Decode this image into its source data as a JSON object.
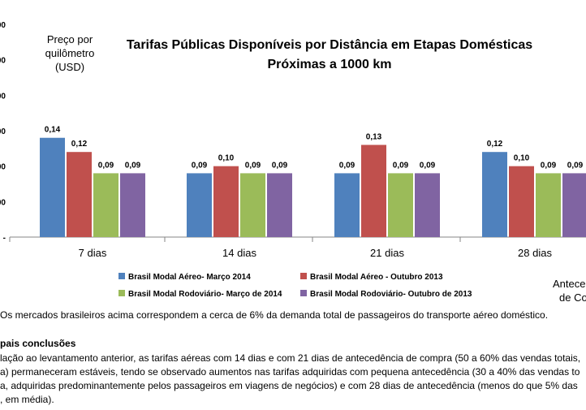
{
  "chart_data": {
    "type": "bar",
    "title_lines": [
      "Tarifas Públicas Disponíveis  por Distância em Etapas Domésticas",
      "Próximas  a 1000 km"
    ],
    "ylabel_lines": [
      "Preço por",
      "quilômetro",
      "(USD)"
    ],
    "xlabel_fragment_lines": [
      "Antece",
      "de Co"
    ],
    "y_tick_labels": [
      "00",
      "00",
      "00",
      "00",
      "00",
      "00",
      "-"
    ],
    "ylim": [
      0,
      0.3
    ],
    "grid": false,
    "categories": [
      "7 dias",
      "14 dias",
      "21 dias",
      "28 dias"
    ],
    "series": [
      {
        "name": "Brasil Modal Aéreo-  Março 2014",
        "color": "#4F81BD",
        "values": [
          0.14,
          0.09,
          0.09,
          0.12
        ],
        "labels": [
          "0,14",
          "0,09",
          "0,09",
          "0,12"
        ]
      },
      {
        "name": "Brasil Modal Aéreo -  Outubro 2013",
        "color": "#C0504D",
        "values": [
          0.12,
          0.1,
          0.13,
          0.1
        ],
        "labels": [
          "0,12",
          "0,10",
          "0,13",
          "0,10"
        ]
      },
      {
        "name": "Brasil Modal Rodoviário-  Março de 2014",
        "color": "#9BBB59",
        "values": [
          0.09,
          0.09,
          0.09,
          0.09
        ],
        "labels": [
          "0,09",
          "0,09",
          "0,09",
          "0,09"
        ]
      },
      {
        "name": "Brasil Modal Rodoviário-  Outubro de 2013",
        "color": "#8064A2",
        "values": [
          0.09,
          0.09,
          0.09,
          0.09
        ],
        "labels": [
          "0,09",
          "0,09",
          "0,09",
          "0,09"
        ]
      }
    ],
    "legend_position": "bottom"
  },
  "notes": {
    "footnote": "Os mercados brasileiros acima correspondem a cerca de 6% da demanda total de passageiros do transporte aéreo doméstico.",
    "heading": "pais conclusões",
    "lines": [
      "lação ao levantamento anterior, as tarifas aéreas com 14 dias e com 21 dias de antecedência de compra (50 a 60% das vendas totais,",
      "a) permaneceram estáveis, tendo se observado aumentos nas tarifas adquiridas com pequena antecedência (30 a 40% das vendas to",
      "a, adquiridas predominantemente pelos passageiros em viagens de negócios) e com 28 dias de antecedência (menos do que 5% das",
      ", em média)."
    ]
  }
}
